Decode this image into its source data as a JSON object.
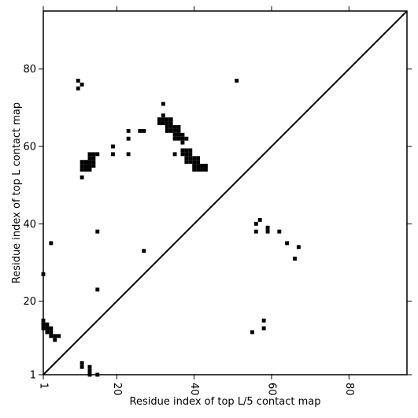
{
  "chart_data": {
    "type": "heatmap",
    "title": "",
    "xlabel": "Residue index of top L/5 contact map",
    "ylabel": "Residue index of top L contact map",
    "xlim": [
      1,
      95
    ],
    "ylim": [
      1,
      95
    ],
    "x_ticks": [
      1,
      20,
      40,
      60,
      80
    ],
    "y_ticks": [
      1,
      20,
      40,
      60,
      80
    ],
    "grid": false,
    "diagonal": true,
    "mark_color": "#000000",
    "upper_contacts": [
      [
        10,
        77
      ],
      [
        10,
        75
      ],
      [
        11,
        76
      ],
      [
        51,
        77
      ],
      [
        32,
        71
      ],
      [
        32,
        68
      ],
      [
        23,
        64
      ],
      [
        26,
        64
      ],
      [
        27,
        64
      ],
      [
        23,
        62
      ],
      [
        38,
        62
      ],
      [
        37,
        61
      ],
      [
        19,
        60
      ],
      [
        19,
        58
      ],
      [
        23,
        58
      ],
      [
        35,
        58
      ],
      [
        14,
        58
      ],
      [
        15,
        58
      ],
      [
        11,
        52
      ],
      [
        3,
        35
      ],
      [
        15,
        38
      ],
      [
        1,
        27
      ],
      [
        27,
        33
      ],
      [
        15,
        23
      ],
      [
        11,
        56
      ],
      [
        12,
        56
      ],
      [
        13,
        56
      ],
      [
        14,
        56
      ],
      [
        11,
        55
      ],
      [
        12,
        55
      ],
      [
        13,
        55
      ],
      [
        14,
        55
      ],
      [
        11,
        54
      ],
      [
        12,
        54
      ],
      [
        13,
        54
      ],
      [
        13,
        57
      ],
      [
        14,
        57
      ],
      [
        13,
        58
      ],
      [
        31,
        67
      ],
      [
        32,
        67
      ],
      [
        33,
        67
      ],
      [
        34,
        67
      ],
      [
        31,
        66
      ],
      [
        32,
        66
      ],
      [
        33,
        66
      ],
      [
        34,
        66
      ],
      [
        33,
        65
      ],
      [
        34,
        65
      ],
      [
        35,
        65
      ],
      [
        36,
        65
      ],
      [
        33,
        64
      ],
      [
        34,
        64
      ],
      [
        35,
        64
      ],
      [
        36,
        64
      ],
      [
        35,
        63
      ],
      [
        36,
        63
      ],
      [
        37,
        63
      ],
      [
        35,
        62
      ],
      [
        36,
        62
      ],
      [
        37,
        62
      ],
      [
        37,
        59
      ],
      [
        38,
        59
      ],
      [
        39,
        59
      ],
      [
        37,
        58
      ],
      [
        38,
        58
      ],
      [
        39,
        58
      ],
      [
        38,
        57
      ],
      [
        39,
        57
      ],
      [
        40,
        57
      ],
      [
        41,
        57
      ],
      [
        38,
        56
      ],
      [
        39,
        56
      ],
      [
        40,
        56
      ],
      [
        41,
        56
      ],
      [
        40,
        55
      ],
      [
        41,
        55
      ],
      [
        42,
        55
      ],
      [
        43,
        55
      ],
      [
        40,
        54
      ],
      [
        41,
        54
      ],
      [
        42,
        54
      ],
      [
        43,
        54
      ]
    ],
    "lower_contacts": [
      [
        1,
        15
      ],
      [
        1,
        14
      ],
      [
        2,
        14
      ],
      [
        1,
        13
      ],
      [
        2,
        13
      ],
      [
        3,
        13
      ],
      [
        2,
        12
      ],
      [
        3,
        12
      ],
      [
        3,
        11
      ],
      [
        4,
        11
      ],
      [
        5,
        11
      ],
      [
        4,
        10
      ],
      [
        11,
        4
      ],
      [
        11,
        3
      ],
      [
        13,
        3
      ],
      [
        13,
        2
      ],
      [
        13,
        1
      ],
      [
        15,
        1
      ],
      [
        56,
        40
      ],
      [
        57,
        41
      ],
      [
        56,
        38
      ],
      [
        59,
        39
      ],
      [
        59,
        38
      ],
      [
        62,
        38
      ],
      [
        64,
        35
      ],
      [
        67,
        34
      ],
      [
        66,
        31
      ],
      [
        58,
        15
      ],
      [
        58,
        13
      ],
      [
        55,
        12
      ]
    ]
  }
}
